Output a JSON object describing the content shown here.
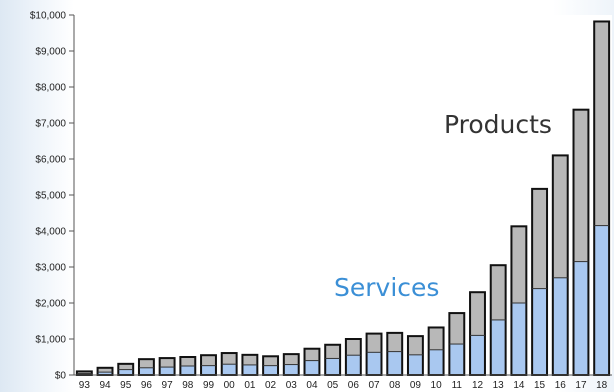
{
  "chart_data": {
    "type": "bar",
    "stacked": true,
    "categories": [
      "93",
      "94",
      "95",
      "96",
      "97",
      "98",
      "99",
      "00",
      "01",
      "02",
      "03",
      "04",
      "05",
      "06",
      "07",
      "08",
      "09",
      "10",
      "11",
      "12",
      "13",
      "14",
      "15",
      "16",
      "17",
      "18"
    ],
    "series": [
      {
        "name": "Services",
        "values": [
          40,
          80,
          150,
          200,
          220,
          250,
          260,
          300,
          280,
          260,
          290,
          400,
          460,
          550,
          630,
          650,
          560,
          700,
          860,
          1100,
          1530,
          2000,
          2400,
          2700,
          3150,
          4150
        ]
      },
      {
        "name": "Products",
        "values": [
          60,
          120,
          160,
          240,
          250,
          250,
          290,
          310,
          280,
          260,
          290,
          330,
          380,
          450,
          520,
          520,
          520,
          620,
          860,
          1200,
          1520,
          2130,
          2770,
          3400,
          4220,
          5670
        ]
      }
    ],
    "ylim": [
      0,
      10000
    ],
    "ytick_labels": [
      "$0",
      "$1,000",
      "$2,000",
      "$3,000",
      "$4,000",
      "$5,000",
      "$6,000",
      "$7,000",
      "$8,000",
      "$9,000",
      "$10,000"
    ],
    "annotations": [
      "Products",
      "Services"
    ],
    "colors": {
      "Services": "#a9c8f0",
      "Products": "#b8b8b8",
      "services_label": "#3b8fd6",
      "products_label": "#333333",
      "outline": "#111111"
    },
    "grid": false
  }
}
